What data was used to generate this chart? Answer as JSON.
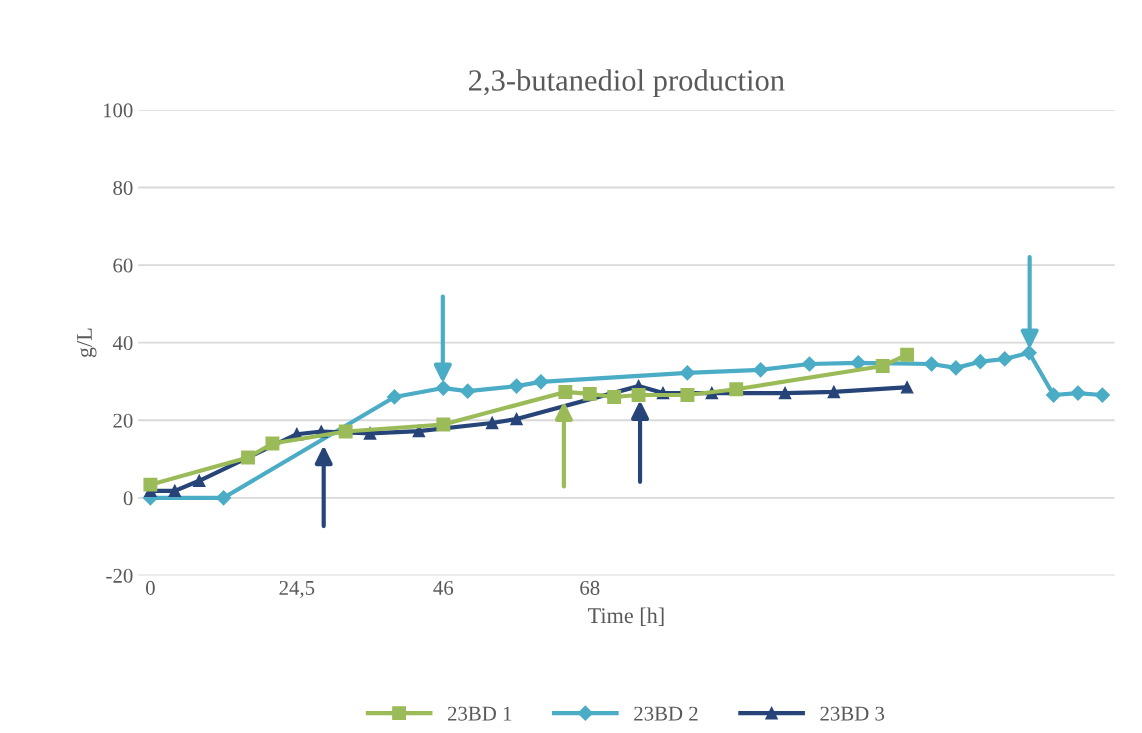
{
  "chart_data": {
    "type": "line",
    "title": "2,3-butanediol production",
    "xlabel": "Time [h]",
    "ylabel": "g/L",
    "categories": [
      "0",
      null,
      null,
      null,
      null,
      null,
      "24,5",
      null,
      null,
      null,
      null,
      null,
      "46",
      null,
      null,
      null,
      null,
      null,
      "68",
      null,
      null,
      null,
      null,
      null,
      null,
      null,
      null,
      null,
      null,
      null,
      null,
      null,
      null,
      null,
      null,
      null,
      null,
      null,
      null,
      null
    ],
    "ylim": [
      -20,
      100
    ],
    "yticks": [
      -20,
      0,
      20,
      40,
      60,
      80,
      100
    ],
    "grid": "y",
    "legend": "bottom",
    "series": [
      {
        "name": "23BD 1",
        "color": "#9bbb59",
        "marker": "square",
        "values": [
          3.4,
          null,
          null,
          null,
          10.4,
          14.0,
          null,
          null,
          17.1,
          null,
          null,
          null,
          18.9,
          null,
          null,
          null,
          null,
          27.3,
          26.8,
          26.0,
          26.5,
          null,
          26.5,
          null,
          28.0,
          null,
          null,
          null,
          null,
          null,
          34.0,
          36.9,
          null,
          null,
          null,
          null,
          null,
          null,
          null,
          null
        ]
      },
      {
        "name": "23BD 2",
        "color": "#4bacc6",
        "marker": "diamond",
        "values": [
          0,
          null,
          null,
          0,
          null,
          null,
          null,
          null,
          null,
          null,
          26.0,
          null,
          28.3,
          27.5,
          null,
          28.8,
          29.9,
          null,
          null,
          null,
          null,
          null,
          32.2,
          null,
          null,
          33.0,
          null,
          34.5,
          null,
          34.8,
          null,
          null,
          34.5,
          33.5,
          35.1,
          35.8,
          37.4,
          26.5,
          27.0,
          26.5
        ]
      },
      {
        "name": "23BD 3",
        "color": "#264478",
        "marker": "triangle",
        "values": [
          1.8,
          1.8,
          4.4,
          null,
          null,
          null,
          16.4,
          17.1,
          null,
          16.6,
          null,
          17.2,
          null,
          null,
          19.3,
          20.3,
          null,
          null,
          null,
          null,
          28.8,
          27.0,
          null,
          27.0,
          null,
          null,
          27.0,
          null,
          27.3,
          null,
          null,
          28.5,
          null,
          null,
          null,
          null,
          null,
          null,
          null,
          null
        ]
      }
    ]
  }
}
